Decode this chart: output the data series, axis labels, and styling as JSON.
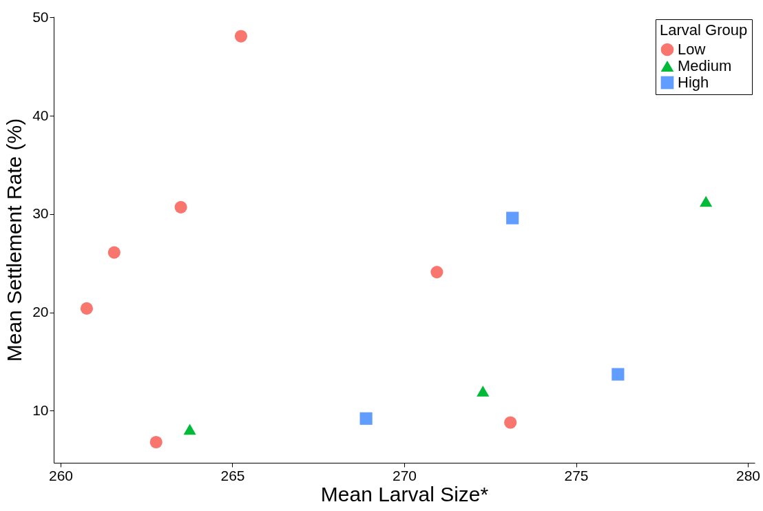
{
  "chart_data": {
    "type": "scatter",
    "xlabel": "Mean Larval Size*",
    "ylabel": "Mean Settlement Rate (%)",
    "legend_title": "Larval Group",
    "xlim": [
      259.8,
      280.2
    ],
    "ylim": [
      4.7,
      50.1
    ],
    "xticks": [
      260,
      265,
      270,
      275,
      280
    ],
    "yticks": [
      10,
      20,
      30,
      40,
      50
    ],
    "grid": false,
    "legend": "top right",
    "series": [
      {
        "name": "Low",
        "color": "#f8766d",
        "marker": "circle",
        "x": [
          260.76,
          261.56,
          263.5,
          265.25,
          262.78,
          270.95,
          273.09
        ],
        "values": [
          20.4,
          26.1,
          30.7,
          48.1,
          6.8,
          24.1,
          8.8
        ]
      },
      {
        "name": "Medium",
        "color": "#00ba38",
        "marker": "triangle",
        "x": [
          263.76,
          272.29,
          278.78
        ],
        "values": [
          8.1,
          12.0,
          31.3
        ]
      },
      {
        "name": "High",
        "color": "#619cff",
        "marker": "square",
        "x": [
          268.89,
          273.15,
          276.22
        ],
        "values": [
          9.2,
          29.6,
          13.7
        ]
      }
    ]
  }
}
